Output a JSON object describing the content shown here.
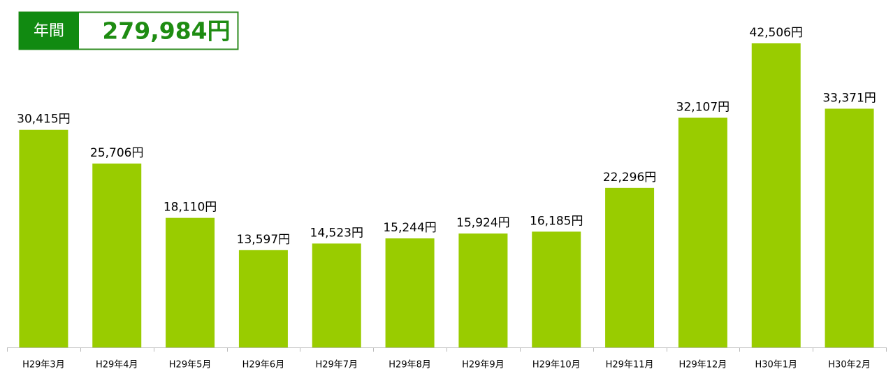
{
  "chart_data": {
    "type": "bar",
    "summary_label": "年間",
    "summary_value": "279,984円",
    "categories": [
      "H29年3月",
      "H29年4月",
      "H29年5月",
      "H29年6月",
      "H29年7月",
      "H29年8月",
      "H29年9月",
      "H29年10月",
      "H29年11月",
      "H29年12月",
      "H30年1月",
      "H30年2月"
    ],
    "values": [
      30415,
      25706,
      18110,
      13597,
      14523,
      15244,
      15924,
      16185,
      22296,
      32107,
      42506,
      33371
    ],
    "value_labels": [
      "30,415円",
      "25,706円",
      "18,110円",
      "13,597円",
      "14,523円",
      "15,244円",
      "15,924円",
      "16,185円",
      "22,296円",
      "32,107円",
      "42,506円",
      "33,371円"
    ],
    "color": "#99cc00"
  }
}
